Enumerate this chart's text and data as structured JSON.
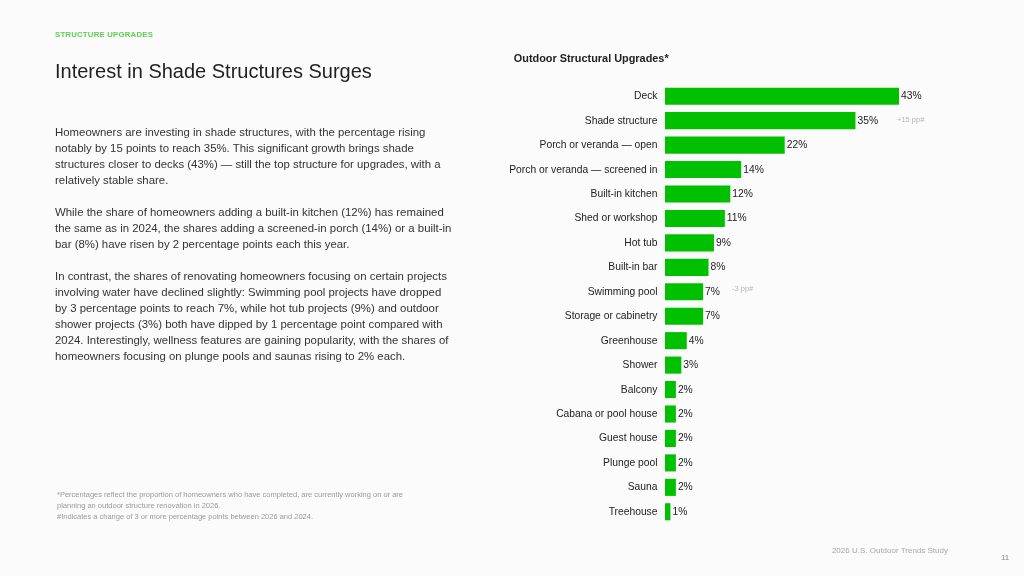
{
  "chart_data": {
    "type": "bar",
    "orientation": "horizontal",
    "title": "Interest in Shade Structures Surges",
    "subtitle": "Outdoor Structural Upgrades*",
    "categories": [
      "Deck",
      "Shade structure",
      "Porch or veranda — open",
      "Porch or veranda — screened in",
      "Built-in kitchen",
      "Shed or workshop",
      "Hot tub",
      "Built-in bar",
      "Swimming pool",
      "Storage or cabinetry",
      "Greenhouse",
      "Shower",
      "Balcony",
      "Cabana or pool house",
      "Guest house",
      "Plunge pool",
      "Sauna",
      "Treehouse"
    ],
    "values": [
      43,
      35,
      22,
      14,
      12,
      11,
      9,
      8,
      7,
      7,
      4,
      3,
      2,
      2,
      2,
      2,
      2,
      1
    ],
    "value_labels": [
      "43%",
      "35%",
      "22%",
      "14%",
      "12%",
      "11%",
      "9%",
      "8%",
      "7%",
      "7%",
      "4%",
      "3%",
      "2%",
      "2%",
      "2%",
      "2%",
      "2%",
      "1%"
    ],
    "color": "#00c000",
    "tick_labels": "y",
    "annotations": [
      "STRUCTURE UPGRADES",
      "Homeowners are investing in shade structures, with the percentage rising notably by 15 points to reach 35%. This significant growth brings shade structures closer to decks (43%) — still the top structure for upgrades, with a relatively stable share.",
      "While the share of homeowners adding a built-in kitchen (12%) has remained the same as in 2024, the shares adding a screened-in porch (14%) or a built-in bar (8%) have risen by 2 percentage points each this year.",
      "In contrast, the shares of renovating homeowners focusing on certain projects involving water have declined slightly: Swimming pool projects have dropped by 3 percentage points to reach 7%, while hot tub projects (9%) and outdoor shower projects (3%) both have dipped by 1 percentage point compared with 2024. Interestingly, wellness features are gaining popularity, with the shares of homeowners focusing on plunge pools and saunas rising to 2% each.",
      "*Percentages reflect the proportion of homeowners who have completed, are currently working on or are planning an outdoor structure renovation in 2026.",
      "#Indicates a change of 3 or more percentage points between 2026 and 2024.",
      "2026 U.S. Outdoor Trends Study",
      "11",
      "+15 pp#",
      "-3 pp#"
    ]
  }
}
